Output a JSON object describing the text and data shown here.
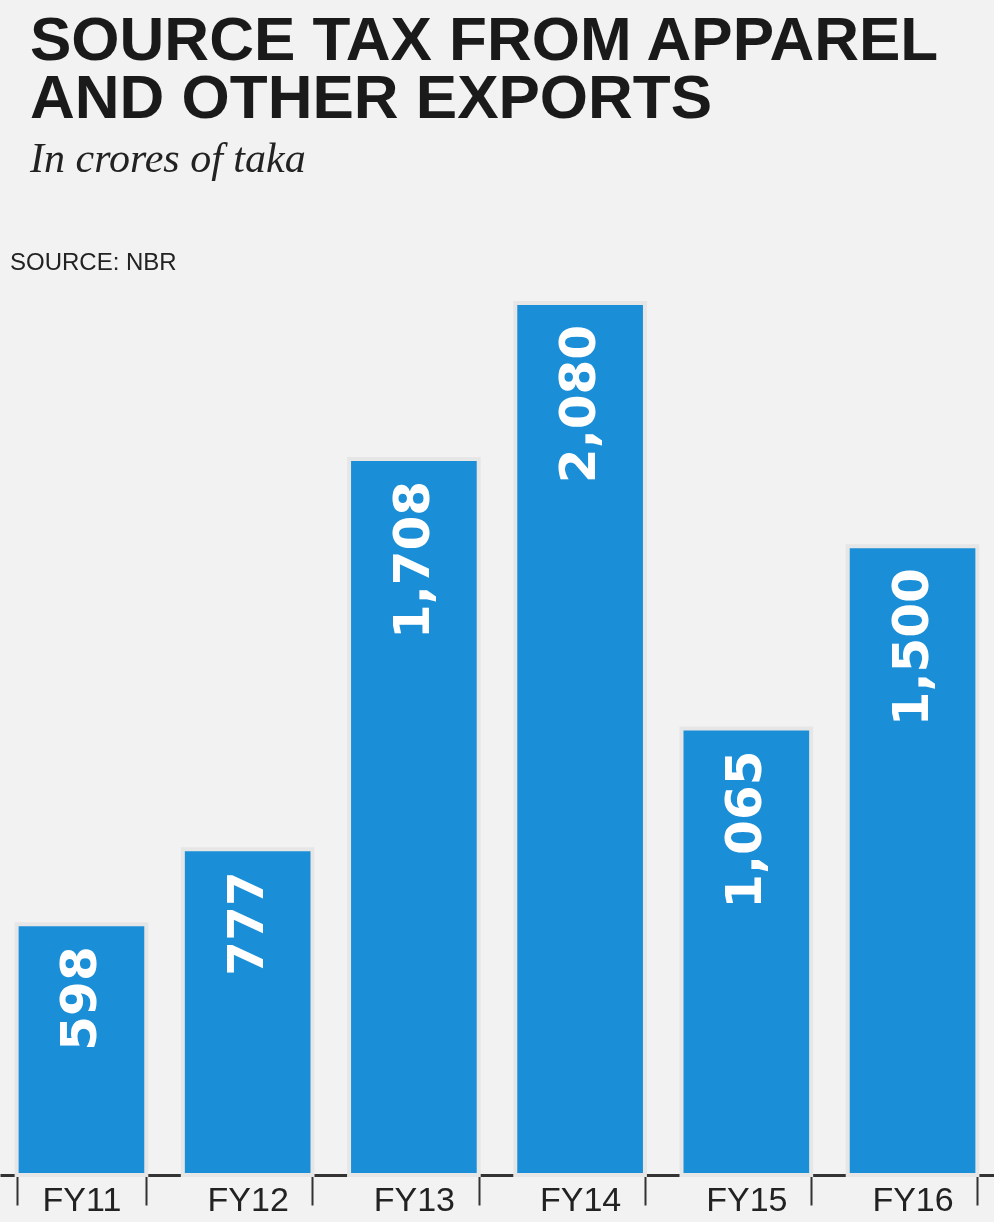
{
  "chart_data": {
    "type": "bar",
    "title": [
      "SOURCE TAX FROM APPAREL",
      "AND OTHER EXPORTS"
    ],
    "subtitle": "In crores of taka",
    "annotations": [
      "SOURCE: NBR"
    ],
    "categories": [
      "FY11",
      "FY12",
      "FY13",
      "FY14",
      "FY15",
      "FY16"
    ],
    "values": [
      598,
      777,
      1708,
      2080,
      1065,
      1500
    ],
    "value_labels": [
      "598",
      "777",
      "1,708",
      "2,080",
      "1,065",
      "1,500"
    ],
    "color": "#1a8ed6",
    "grid": false,
    "legend": false
  }
}
